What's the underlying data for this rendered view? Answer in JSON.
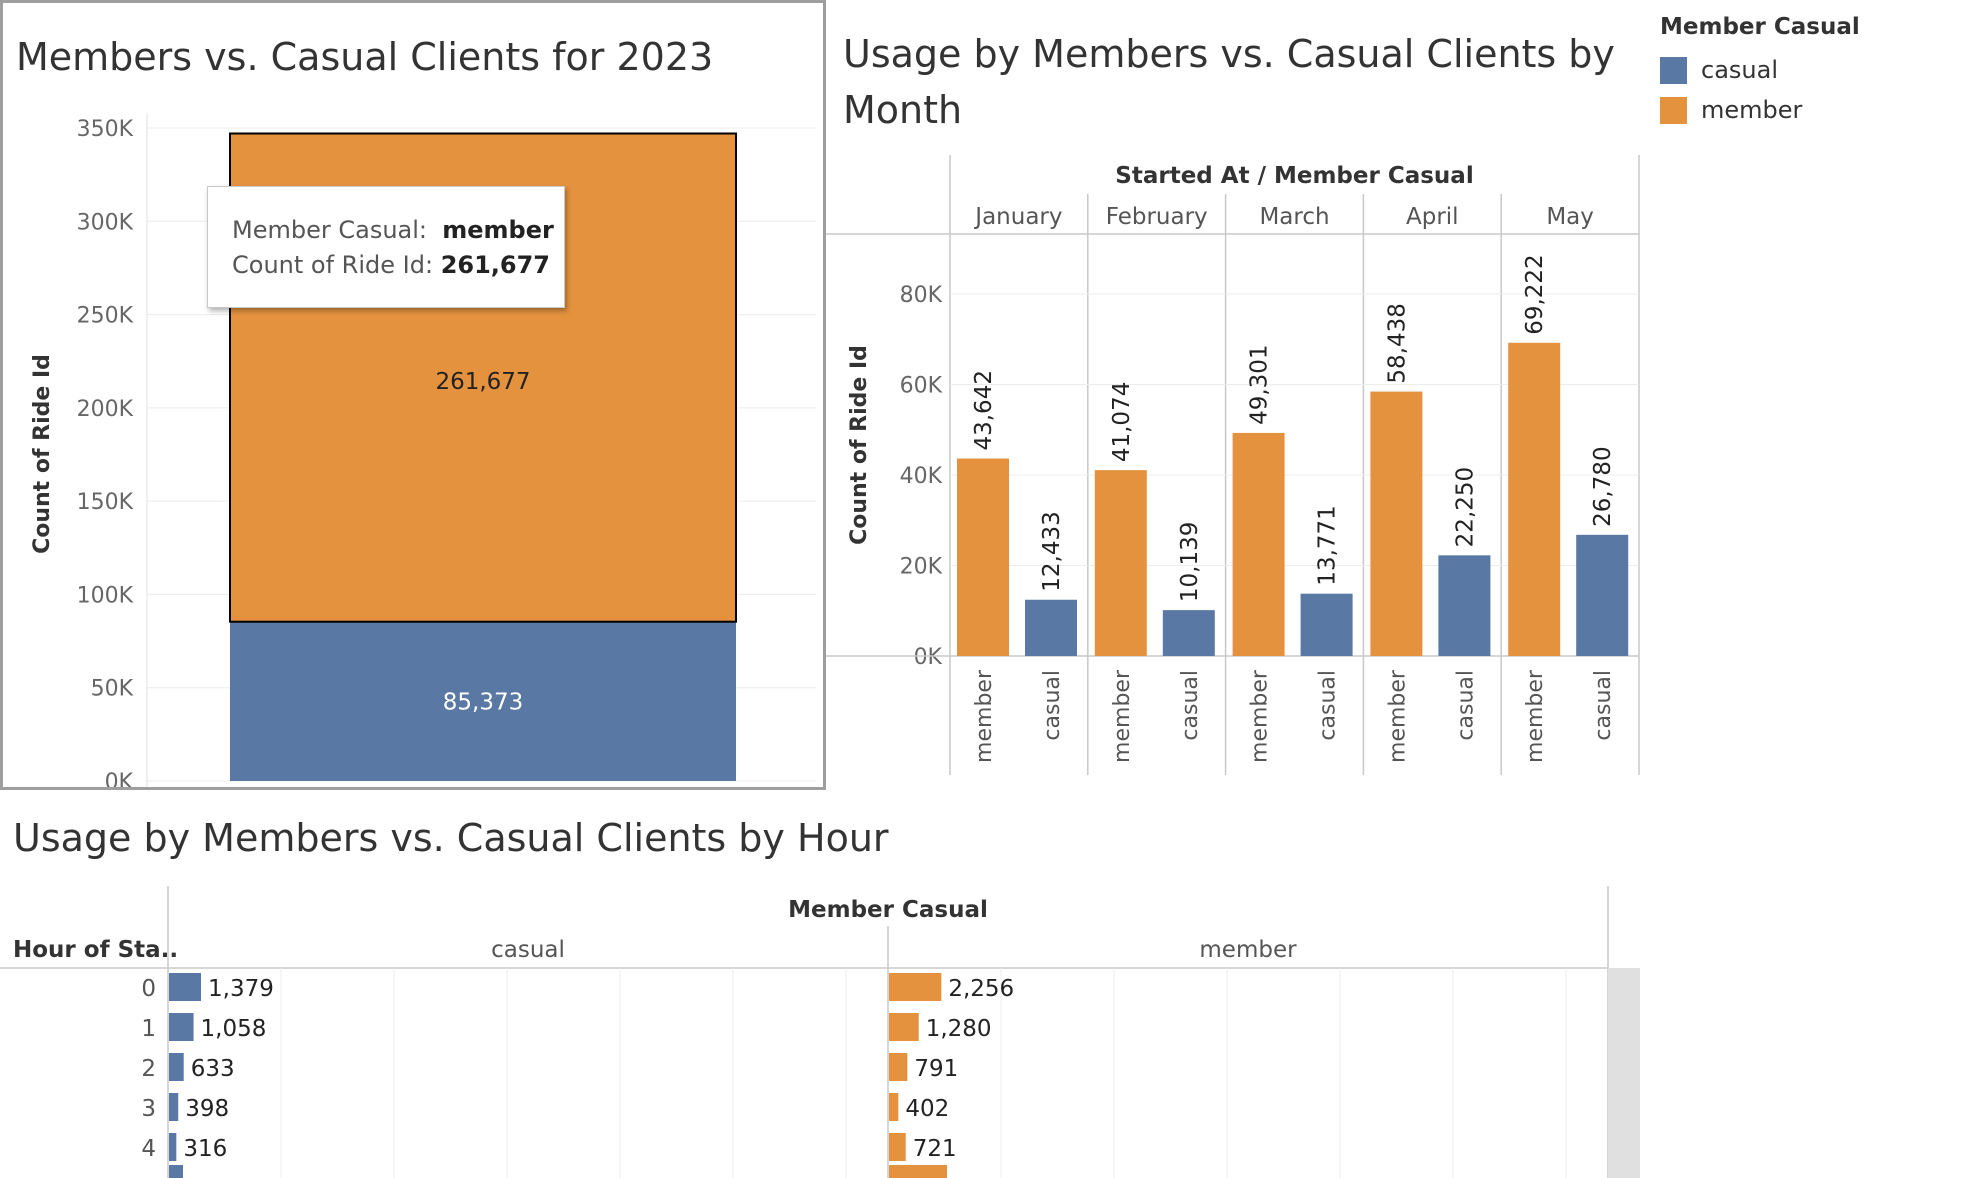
{
  "colors": {
    "member": "#e5923f",
    "casual": "#5a78a4"
  },
  "legend": {
    "title": "Member Casual",
    "items": [
      {
        "label": "casual",
        "color": "#5a78a4"
      },
      {
        "label": "member",
        "color": "#e5923f"
      }
    ]
  },
  "tooltip": {
    "line1_label": "Member Casual:",
    "line1_value": "member",
    "line2_label": "Count of Ride Id:",
    "line2_value": "261,677"
  },
  "chart_data": [
    {
      "type": "bar",
      "title": "Members vs. Casual Clients for 2023",
      "ylabel": "Count of Ride Id",
      "stacked": true,
      "ylim": [
        0,
        350000
      ],
      "yticks": [
        0,
        50000,
        100000,
        150000,
        200000,
        250000,
        300000,
        350000
      ],
      "ytick_labels": [
        "0K",
        "50K",
        "100K",
        "150K",
        "200K",
        "250K",
        "300K",
        "350K"
      ],
      "series": [
        {
          "name": "casual",
          "values": [
            85373
          ],
          "labels": [
            "85,373"
          ]
        },
        {
          "name": "member",
          "values": [
            261677
          ],
          "labels": [
            "261,677"
          ]
        }
      ]
    },
    {
      "type": "bar",
      "title": "Usage by Members vs. Casual Clients by Month",
      "header": "Started At / Member Casual",
      "ylabel": "Count of Ride Id",
      "ylim": [
        0,
        90000
      ],
      "yticks": [
        0,
        20000,
        40000,
        60000,
        80000
      ],
      "ytick_labels": [
        "0K",
        "20K",
        "40K",
        "60K",
        "80K"
      ],
      "months": [
        {
          "name": "January",
          "bars": [
            {
              "category": "member",
              "value": 43642,
              "label": "43,642"
            },
            {
              "category": "casual",
              "value": 12433,
              "label": "12,433"
            }
          ]
        },
        {
          "name": "February",
          "bars": [
            {
              "category": "member",
              "value": 41074,
              "label": "41,074"
            },
            {
              "category": "casual",
              "value": 10139,
              "label": "10,139"
            }
          ]
        },
        {
          "name": "March",
          "bars": [
            {
              "category": "member",
              "value": 49301,
              "label": "49,301"
            },
            {
              "category": "casual",
              "value": 13771,
              "label": "13,771"
            }
          ]
        },
        {
          "name": "April",
          "bars": [
            {
              "category": "member",
              "value": 58438,
              "label": "58,438"
            },
            {
              "category": "casual",
              "value": 22250,
              "label": "22,250"
            }
          ]
        },
        {
          "name": "May",
          "bars": [
            {
              "category": "member",
              "value": 69222,
              "label": "69,222"
            },
            {
              "category": "casual",
              "value": 26780,
              "label": "26,780"
            }
          ]
        }
      ]
    },
    {
      "type": "bar",
      "orientation": "horizontal",
      "title": "Usage by Members vs. Casual Clients by Hour",
      "header": "Member Casual",
      "row_header": "Hour of Sta..",
      "hours": [
        "0",
        "1",
        "2",
        "3",
        "4"
      ],
      "columns": [
        {
          "name": "casual",
          "values": [
            1379,
            1058,
            633,
            398,
            316
          ],
          "labels": [
            "1,379",
            "1,058",
            "633",
            "398",
            "316"
          ]
        },
        {
          "name": "member",
          "values": [
            2256,
            1280,
            791,
            402,
            721
          ],
          "labels": [
            "2,256",
            "1,280",
            "791",
            "402",
            "721"
          ]
        }
      ]
    }
  ]
}
